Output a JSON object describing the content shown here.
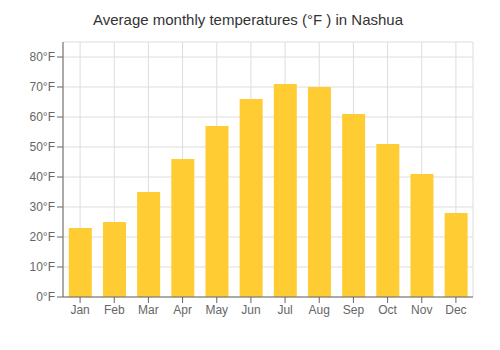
{
  "chart_data": {
    "type": "bar",
    "title": "Average monthly temperatures (°F ) in Nashua",
    "categories": [
      "Jan",
      "Feb",
      "Mar",
      "Apr",
      "May",
      "Jun",
      "Jul",
      "Aug",
      "Sep",
      "Oct",
      "Nov",
      "Dec"
    ],
    "values": [
      23,
      25,
      35,
      46,
      57,
      66,
      71,
      70,
      61,
      51,
      41,
      28
    ],
    "color": "#FFCC33",
    "ylim": [
      0,
      85
    ],
    "yticks": [
      {
        "value": 0,
        "label": "0°F"
      },
      {
        "value": 10,
        "label": "10°F"
      },
      {
        "value": 20,
        "label": "20°F"
      },
      {
        "value": 30,
        "label": "30°F"
      },
      {
        "value": 40,
        "label": "40°F"
      },
      {
        "value": 50,
        "label": "50°F"
      },
      {
        "value": 60,
        "label": "60°F"
      },
      {
        "value": 70,
        "label": "70°F"
      },
      {
        "value": 80,
        "label": "80°F"
      }
    ],
    "grid": true
  }
}
